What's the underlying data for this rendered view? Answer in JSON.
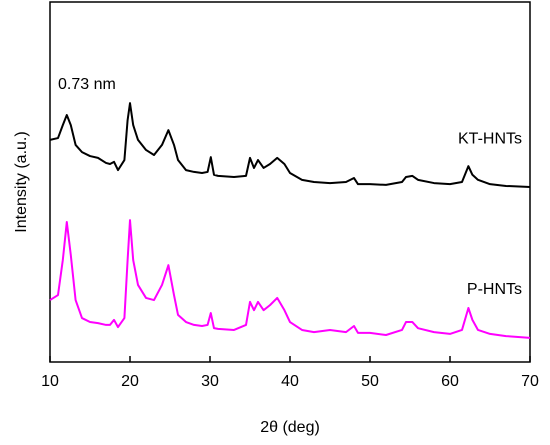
{
  "chart_data": {
    "type": "line",
    "xlabel": "2θ (deg)",
    "ylabel": "Intensity (a.u.)",
    "annotation": "0.73 nm",
    "x": [
      10,
      11,
      11.6,
      12.1,
      12.6,
      13.2,
      14,
      15,
      16,
      17,
      17.5,
      18,
      18.5,
      19.3,
      19.7,
      20,
      20.4,
      21,
      22,
      23,
      24,
      24.8,
      25.5,
      26,
      27,
      28,
      29,
      29.7,
      30.1,
      30.5,
      31,
      33,
      34.5,
      35,
      35.5,
      36,
      36.7,
      37.5,
      38.4,
      39.3,
      40,
      41.5,
      43,
      45,
      47,
      48,
      48.5,
      50,
      52,
      54,
      54.5,
      55.3,
      56,
      58,
      60,
      61.5,
      62.3,
      62.8,
      63.5,
      65,
      67,
      70
    ],
    "series": [
      {
        "name": "KT-HNTs",
        "color": "#000000",
        "values": [
          61.7,
          62.2,
          65.8,
          68.6,
          65.8,
          60.3,
          58.3,
          57.2,
          56.7,
          55.3,
          55.0,
          55.6,
          53.3,
          56.1,
          67.2,
          71.9,
          65.8,
          61.7,
          58.9,
          57.5,
          60.3,
          64.4,
          60.3,
          56.1,
          53.3,
          52.8,
          52.5,
          52.8,
          56.9,
          52.0,
          51.7,
          51.4,
          51.7,
          56.7,
          53.9,
          56.1,
          53.9,
          55.0,
          56.7,
          55.0,
          52.5,
          50.6,
          50.0,
          49.7,
          50.0,
          51.1,
          49.4,
          49.4,
          49.2,
          50.0,
          51.4,
          51.7,
          50.6,
          49.7,
          49.4,
          50.0,
          54.4,
          52.0,
          50.6,
          49.4,
          48.9,
          48.6
        ]
      },
      {
        "name": "P-HNTs",
        "color": "#ff00ff",
        "values": [
          17.2,
          18.6,
          28.3,
          38.9,
          29.7,
          17.2,
          12.2,
          11.1,
          10.8,
          10.3,
          10.3,
          11.7,
          9.7,
          12.2,
          28.3,
          39.4,
          28.3,
          21.4,
          17.8,
          17.2,
          21.4,
          26.9,
          18.6,
          13.1,
          11.1,
          10.3,
          10.0,
          10.3,
          13.6,
          9.4,
          9.2,
          8.9,
          10.3,
          16.7,
          14.4,
          16.7,
          14.4,
          15.8,
          17.8,
          14.4,
          11.1,
          8.9,
          8.3,
          8.9,
          8.3,
          10.0,
          8.1,
          8.1,
          7.5,
          8.9,
          11.1,
          11.1,
          9.4,
          8.3,
          7.8,
          8.9,
          15.0,
          11.7,
          8.9,
          7.8,
          7.2,
          6.7
        ]
      }
    ],
    "xlim": [
      10,
      70
    ],
    "xticks": [
      10,
      20,
      30,
      40,
      50,
      60,
      70
    ],
    "ylim": [
      0,
      100
    ]
  }
}
